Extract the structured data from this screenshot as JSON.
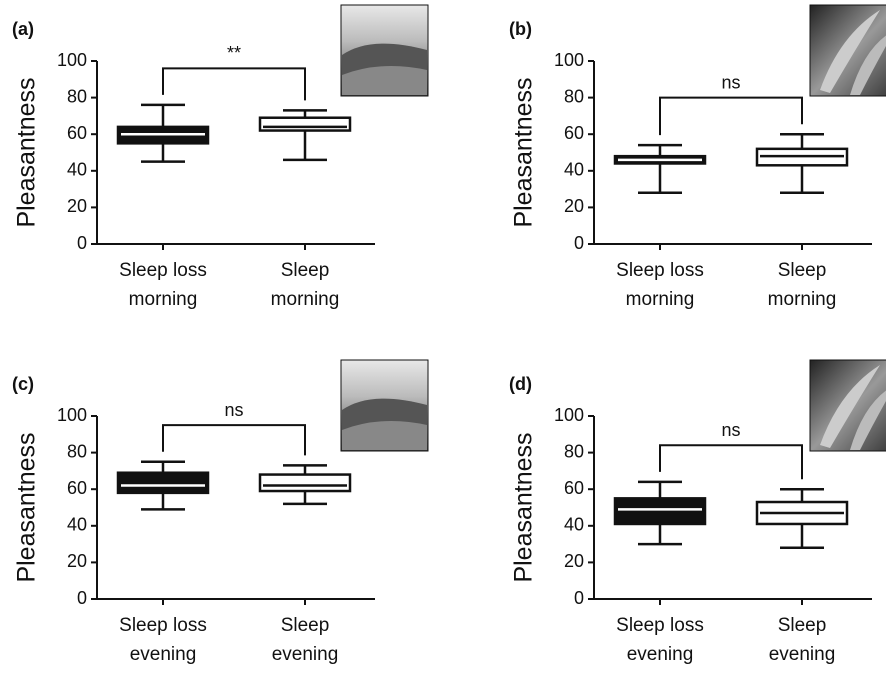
{
  "chart_data": [
    {
      "type": "box",
      "panel_label": "(a)",
      "ylabel": "Pleasantness",
      "annotation": "**",
      "categories": [
        "Sleep loss\nmorning",
        "Sleep\nmorning"
      ],
      "boxes": [
        {
          "min": 45,
          "q1": 55,
          "median": 60,
          "q3": 64,
          "max": 76,
          "fill": "#111111",
          "median_color": "#ffffff"
        },
        {
          "min": 46,
          "q1": 62,
          "median": 64,
          "q3": 69,
          "max": 73,
          "fill": "#ffffff",
          "median_color": "#111111"
        }
      ],
      "ylim": [
        0,
        100
      ],
      "yticks": [
        0,
        20,
        40,
        60,
        80,
        100
      ]
    },
    {
      "type": "box",
      "panel_label": "(b)",
      "ylabel": "Pleasantness",
      "annotation": "ns",
      "categories": [
        "Sleep loss\nmorning",
        "Sleep\nmorning"
      ],
      "boxes": [
        {
          "min": 28,
          "q1": 44,
          "median": 46,
          "q3": 48,
          "max": 54,
          "fill": "#111111",
          "median_color": "#ffffff"
        },
        {
          "min": 28,
          "q1": 43,
          "median": 48,
          "q3": 52,
          "max": 60,
          "fill": "#ffffff",
          "median_color": "#111111"
        }
      ],
      "ylim": [
        0,
        100
      ],
      "yticks": [
        0,
        20,
        40,
        60,
        80,
        100
      ]
    },
    {
      "type": "box",
      "panel_label": "(c)",
      "ylabel": "Pleasantness",
      "annotation": "ns",
      "categories": [
        "Sleep loss\nevening",
        "Sleep\nevening"
      ],
      "boxes": [
        {
          "min": 49,
          "q1": 58,
          "median": 62,
          "q3": 69,
          "max": 75,
          "fill": "#111111",
          "median_color": "#ffffff"
        },
        {
          "min": 52,
          "q1": 59,
          "median": 62,
          "q3": 68,
          "max": 73,
          "fill": "#ffffff",
          "median_color": "#111111"
        }
      ],
      "ylim": [
        0,
        100
      ],
      "yticks": [
        0,
        20,
        40,
        60,
        80,
        100
      ]
    },
    {
      "type": "box",
      "panel_label": "(d)",
      "ylabel": "Pleasantness",
      "annotation": "ns",
      "categories": [
        "Sleep loss\nevening",
        "Sleep\nevening"
      ],
      "boxes": [
        {
          "min": 30,
          "q1": 41,
          "median": 49,
          "q3": 55,
          "max": 64,
          "fill": "#111111",
          "median_color": "#ffffff"
        },
        {
          "min": 28,
          "q1": 41,
          "median": 47,
          "q3": 53,
          "max": 60,
          "fill": "#ffffff",
          "median_color": "#111111"
        }
      ],
      "ylim": [
        0,
        100
      ],
      "yticks": [
        0,
        20,
        40,
        60,
        80,
        100
      ]
    }
  ]
}
